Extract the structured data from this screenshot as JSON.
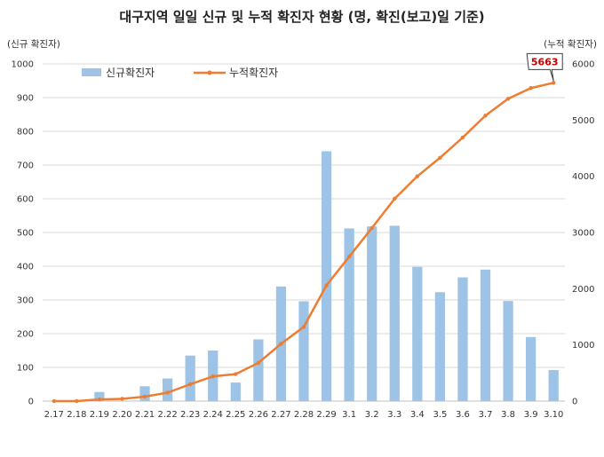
{
  "chart_data": {
    "type": "bar+line",
    "title": "대구지역 일일 신규 및 누적 확진자 현황 (명, 확진(보고)일 기준)",
    "y_left_label": "(신규 확진자)",
    "y_right_label": "(누적 확진자)",
    "y_left_lim": [
      0,
      1000
    ],
    "y_left_ticks": [
      0,
      100,
      200,
      300,
      400,
      500,
      600,
      700,
      800,
      900,
      1000
    ],
    "y_right_lim": [
      0,
      6000
    ],
    "y_right_ticks": [
      0,
      1000,
      2000,
      3000,
      4000,
      5000,
      6000
    ],
    "categories": [
      "2.17",
      "2.18",
      "2.19",
      "2.20",
      "2.21",
      "2.22",
      "2.23",
      "2.24",
      "2.25",
      "2.26",
      "2.27",
      "2.28",
      "2.29",
      "3.1",
      "3.2",
      "3.3",
      "3.4",
      "3.5",
      "3.6",
      "3.7",
      "3.8",
      "3.9",
      "3.10"
    ],
    "series": [
      {
        "name": "신규확진자",
        "type": "bar",
        "axis": "left",
        "color": "#9dc3e6",
        "values": [
          0,
          0,
          27,
          0,
          44,
          67,
          135,
          150,
          55,
          183,
          340,
          296,
          741,
          512,
          518,
          520,
          398,
          323,
          367,
          390,
          297,
          190,
          92
        ]
      },
      {
        "name": "누적확진자",
        "type": "line",
        "axis": "right",
        "color": "#ed7d31",
        "values": [
          0,
          0,
          30,
          40,
          80,
          150,
          300,
          440,
          480,
          680,
          1020,
          1320,
          2060,
          2570,
          3080,
          3600,
          4000,
          4330,
          4690,
          5080,
          5380,
          5570,
          5663
        ]
      }
    ],
    "annotations": [
      {
        "series": "누적확진자",
        "category": "3.10",
        "text": "5663"
      }
    ],
    "legend": "top-left",
    "grid": true
  }
}
